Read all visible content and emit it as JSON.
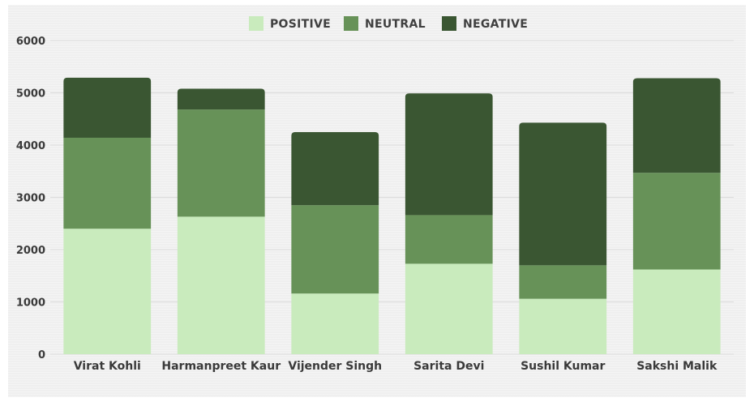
{
  "chart_data": {
    "type": "bar",
    "stacked": true,
    "categories": [
      "Virat Kohli",
      "Harmanpreet Kaur",
      "Vijender Singh",
      "Sarita Devi",
      "Sushil Kumar",
      "Sakshi Malik"
    ],
    "series": [
      {
        "name": "POSITIVE",
        "color": "#c9ebbd",
        "values": [
          2400,
          2630,
          1160,
          1730,
          1060,
          1620
        ]
      },
      {
        "name": "NEUTRAL",
        "color": "#679258",
        "values": [
          1740,
          2050,
          1690,
          930,
          640,
          1850
        ]
      },
      {
        "name": "NEGATIVE",
        "color": "#3a5632",
        "values": [
          1150,
          400,
          1400,
          2330,
          2730,
          1810
        ]
      }
    ],
    "yticks": [
      "0",
      "1000",
      "2000",
      "3000",
      "4000",
      "5000",
      "6000"
    ],
    "ylim": [
      0,
      6000
    ],
    "grid": true,
    "legend_position": "top-center"
  }
}
